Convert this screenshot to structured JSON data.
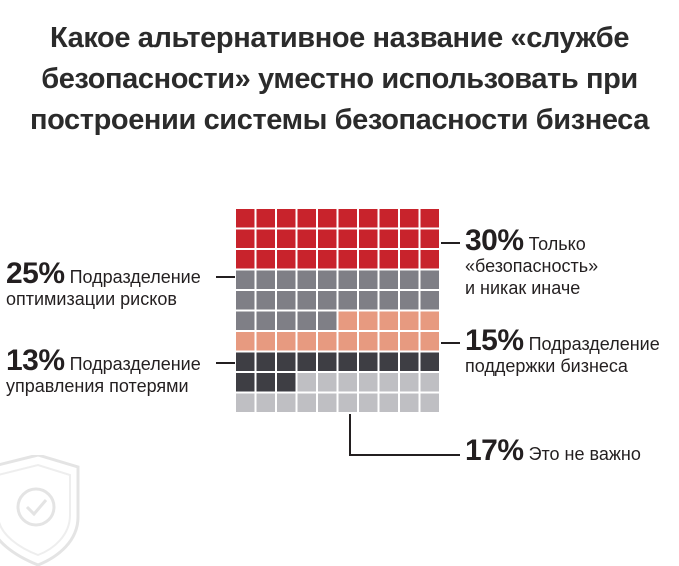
{
  "title_lines": [
    "Какое альтернативное название «службе",
    "безопасности» уместно использовать при",
    "построении системы безопасности бизнеса"
  ],
  "labels": {
    "only_security": {
      "pct": "30%",
      "l1": "Только",
      "l2": "«безопасность»",
      "l3": "и никак иначе"
    },
    "risk_opt": {
      "pct": "25%",
      "l1": "Подразделение",
      "l2": "оптимизации рисков"
    },
    "loss_mgmt": {
      "pct": "13%",
      "l1": "Подразделение",
      "l2": "управления потерями"
    },
    "biz_support": {
      "pct": "15%",
      "l1": "Подразделение",
      "l2": "поддержки бизнеса"
    },
    "not_important": {
      "pct": "17%",
      "l1": "Это не важно"
    }
  },
  "chart_data": {
    "type": "waffle",
    "grid": {
      "rows": 10,
      "cols": 10
    },
    "categories": [
      {
        "name": "Только «безопасность» и никак иначе",
        "value": 30,
        "color": "#c8232c"
      },
      {
        "name": "Подразделение оптимизации рисков",
        "value": 25,
        "color": "#7f7f86"
      },
      {
        "name": "Подразделение поддержки бизнеса",
        "value": 15,
        "color": "#e79a80"
      },
      {
        "name": "Подразделение управления потерями",
        "value": 13,
        "color": "#3e3e44"
      },
      {
        "name": "Это не важно",
        "value": 17,
        "color": "#bfbfc3"
      }
    ]
  }
}
